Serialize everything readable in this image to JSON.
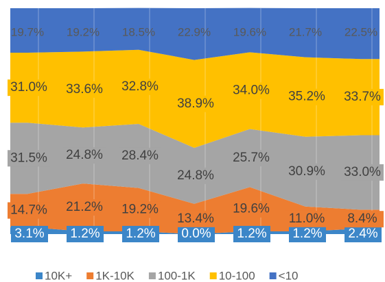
{
  "chart_data": {
    "type": "stacked_area_100",
    "categories": [
      null,
      null,
      null,
      null,
      null,
      null,
      null
    ],
    "ylim": [
      0,
      100
    ],
    "legend": "bottom",
    "series": [
      {
        "name": "10K+",
        "color": "#3c86c8",
        "values": [
          3.1,
          1.2,
          1.2,
          0.0,
          1.2,
          1.2,
          2.4
        ],
        "value_labels": [
          "3.1%",
          "1.2%",
          "1.2%",
          "0.0%",
          "1.2%",
          "1.2%",
          "2.4%"
        ]
      },
      {
        "name": "1K-10K",
        "color": "#ed7d31",
        "values": [
          14.7,
          21.2,
          19.2,
          13.4,
          19.6,
          11.0,
          8.4
        ],
        "value_labels": [
          "14.7%",
          "21.2%",
          "19.2%",
          "13.4%",
          "19.6%",
          "11.0%",
          "8.4%"
        ]
      },
      {
        "name": "100-1K",
        "color": "#a5a5a5",
        "values": [
          31.5,
          24.8,
          28.4,
          24.8,
          25.7,
          30.9,
          33.0
        ],
        "value_labels": [
          "31.5%",
          "24.8%",
          "28.4%",
          "24.8%",
          "25.7%",
          "30.9%",
          "33.0%"
        ]
      },
      {
        "name": "10-100",
        "color": "#ffc000",
        "values": [
          31.0,
          33.6,
          32.8,
          38.9,
          34.0,
          35.2,
          33.7
        ],
        "value_labels": [
          "31.0%",
          "33.6%",
          "32.8%",
          "38.9%",
          "34.0%",
          "35.2%",
          "33.7%"
        ]
      },
      {
        "name": "<10",
        "color": "#4472c4",
        "values": [
          19.7,
          19.2,
          18.5,
          22.9,
          19.6,
          21.7,
          22.5
        ],
        "value_labels": [
          "19.7%",
          "19.2%",
          "18.5%",
          "22.9%",
          "19.6%",
          "21.7%",
          "22.5%"
        ]
      }
    ]
  }
}
